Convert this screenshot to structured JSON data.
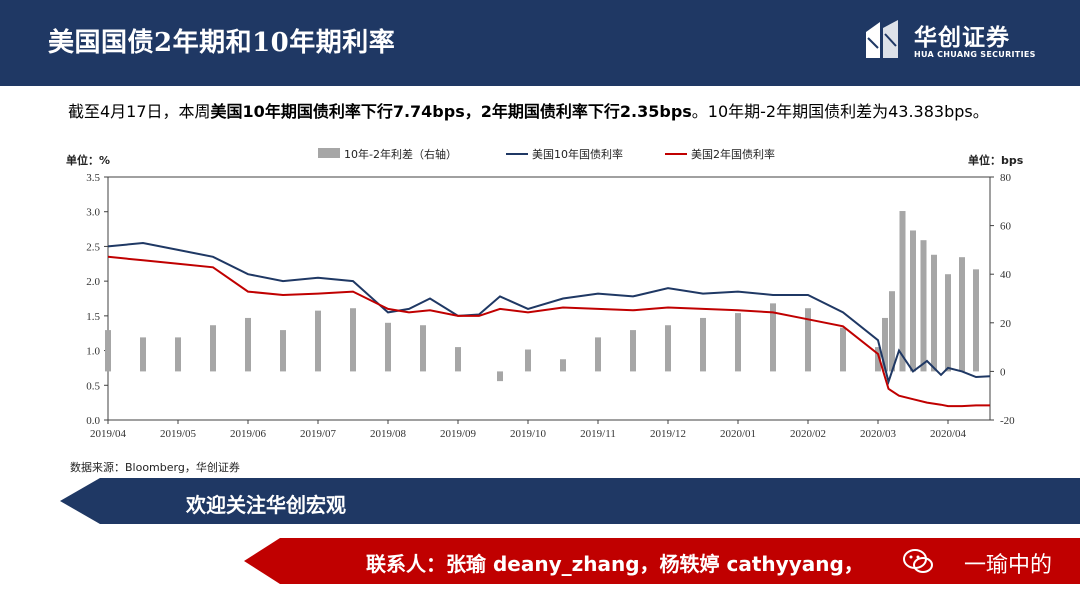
{
  "header": {
    "title": "美国国债2年期和10年期利率",
    "logo_cn": "华创证券",
    "logo_en": "HUA CHUANG SECURITIES"
  },
  "summary": {
    "prefix": "截至4月17日，本周",
    "us10_bold": "美国10年期国债利率下行7.74bps",
    "sep": "，",
    "us2_bold": "2年期国债利率下行2.35bps",
    "suffix": "。10年期-2年期国债利差为43.383bps。"
  },
  "chart_data": {
    "type": "bar+line",
    "left_unit": "单位：%",
    "right_unit": "单位：bps",
    "ylim_left": [
      0.0,
      3.5
    ],
    "ylim_right": [
      -20,
      80
    ],
    "yticks_left": [
      "3.5",
      "3.0",
      "2.5",
      "2.0",
      "1.5",
      "1.0",
      "0.5",
      "0.0"
    ],
    "yticks_right": [
      "80",
      "60",
      "40",
      "20",
      "0",
      "-20"
    ],
    "x_labels": [
      "2019/04",
      "2019/05",
      "2019/06",
      "2019/07",
      "2019/08",
      "2019/09",
      "2019/10",
      "2019/11",
      "2019/12",
      "2020/01",
      "2020/02",
      "2020/03",
      "2020/04"
    ],
    "grid": false,
    "legend_position": "top",
    "series": [
      {
        "name": "10年-2年利差（右轴）",
        "kind": "bar",
        "axis": "right",
        "color": "#a6a6a6",
        "x": [
          0,
          0.5,
          1,
          1.5,
          2,
          2.5,
          3,
          3.5,
          4,
          4.5,
          5,
          5.3,
          5.6,
          6,
          6.5,
          7,
          7.5,
          8,
          8.5,
          9,
          9.5,
          10,
          10.5,
          11,
          11.1,
          11.2,
          11.35,
          11.5,
          11.65,
          11.8,
          12,
          12.2,
          12.4
        ],
        "values": [
          17,
          14,
          14,
          19,
          22,
          17,
          25,
          26,
          20,
          19,
          10,
          0,
          -4,
          9,
          5,
          14,
          17,
          19,
          22,
          24,
          28,
          26,
          18,
          10,
          22,
          33,
          66,
          58,
          54,
          48,
          40,
          47,
          42
        ]
      },
      {
        "name": "美国10年国债利率",
        "kind": "line",
        "axis": "left",
        "color": "#1f3864",
        "x": [
          0,
          0.5,
          1,
          1.5,
          2,
          2.5,
          3,
          3.5,
          4,
          4.3,
          4.6,
          5,
          5.3,
          5.6,
          6,
          6.5,
          7,
          7.5,
          8,
          8.5,
          9,
          9.5,
          10,
          10.5,
          11,
          11.15,
          11.3,
          11.5,
          11.7,
          11.9,
          12,
          12.2,
          12.4,
          12.6
        ],
        "values": [
          2.5,
          2.55,
          2.45,
          2.35,
          2.1,
          2.0,
          2.05,
          2.0,
          1.55,
          1.6,
          1.75,
          1.5,
          1.52,
          1.78,
          1.6,
          1.75,
          1.82,
          1.78,
          1.9,
          1.82,
          1.85,
          1.8,
          1.8,
          1.55,
          1.15,
          0.55,
          1.0,
          0.7,
          0.85,
          0.65,
          0.75,
          0.7,
          0.62,
          0.63
        ]
      },
      {
        "name": "美国2年国债利率",
        "kind": "line",
        "axis": "left",
        "color": "#c00000",
        "x": [
          0,
          0.5,
          1,
          1.5,
          2,
          2.5,
          3,
          3.5,
          4,
          4.3,
          4.6,
          5,
          5.3,
          5.6,
          6,
          6.5,
          7,
          7.5,
          8,
          8.5,
          9,
          9.5,
          10,
          10.5,
          11,
          11.15,
          11.3,
          11.5,
          11.7,
          11.9,
          12,
          12.2,
          12.4,
          12.6
        ],
        "values": [
          2.35,
          2.3,
          2.25,
          2.2,
          1.85,
          1.8,
          1.82,
          1.85,
          1.6,
          1.55,
          1.58,
          1.5,
          1.5,
          1.6,
          1.55,
          1.62,
          1.6,
          1.58,
          1.62,
          1.6,
          1.58,
          1.55,
          1.45,
          1.35,
          0.95,
          0.45,
          0.35,
          0.3,
          0.25,
          0.22,
          0.2,
          0.2,
          0.21,
          0.21
        ]
      }
    ]
  },
  "source": "数据来源：Bloomberg，华创证券",
  "banners": {
    "welcome": "欢迎关注华创宏观",
    "contact": "联系人：张瑜 deany_zhang，杨轶婷 cathyyang，",
    "watermark": "一瑜中的"
  }
}
